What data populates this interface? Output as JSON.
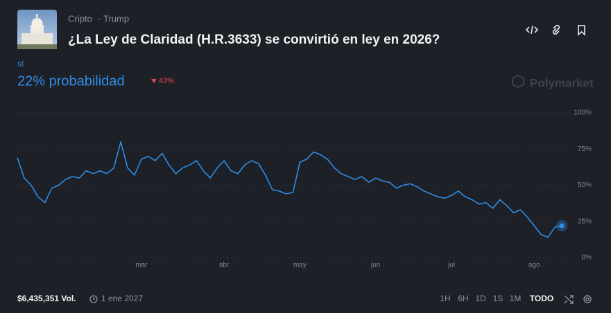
{
  "header": {
    "tags": [
      "Cripto",
      "Trump"
    ],
    "title": "¿La Ley de Claridad (H.R.3633) se convirtió en ley en 2026?"
  },
  "outcome": {
    "name": "sí",
    "probability": "22% probabilidad",
    "change": "43%"
  },
  "brand": "Polymarket",
  "footer": {
    "volume": "$6,435,351 Vol.",
    "end_date": "1 ene 2027",
    "ranges": [
      "1H",
      "6H",
      "1D",
      "1S",
      "1M",
      "TODO"
    ]
  },
  "chart_data": {
    "type": "line",
    "categories": [
      null,
      null,
      null,
      null,
      null,
      null,
      null,
      null,
      null,
      null,
      null,
      null,
      null,
      null,
      null,
      null,
      null,
      null,
      "mar",
      null,
      null,
      null,
      null,
      null,
      null,
      null,
      null,
      null,
      null,
      null,
      "abr",
      null,
      null,
      null,
      null,
      null,
      null,
      null,
      null,
      null,
      null,
      "may",
      null,
      null,
      null,
      null,
      null,
      null,
      null,
      null,
      null,
      null,
      "jun",
      null,
      null,
      null,
      null,
      null,
      null,
      null,
      null,
      null,
      null,
      "jul",
      null,
      null,
      null,
      null,
      null,
      null,
      null,
      null,
      null,
      null,
      null,
      "ago",
      null,
      null,
      null,
      null
    ],
    "series": [
      {
        "name": "sí",
        "color": "#2e8ce6",
        "values": [
          69,
          55,
          50,
          42,
          38,
          48,
          50,
          54,
          56,
          55,
          60,
          58,
          60,
          58,
          62,
          80,
          62,
          57,
          68,
          70,
          67,
          72,
          64,
          58,
          62,
          64,
          67,
          60,
          55,
          62,
          67,
          60,
          58,
          64,
          67,
          65,
          57,
          47,
          46,
          44,
          45,
          66,
          68,
          73,
          71,
          68,
          62,
          58,
          56,
          54,
          56,
          52,
          55,
          53,
          52,
          48,
          50,
          51,
          49,
          46,
          44,
          42,
          41,
          43,
          46,
          42,
          40,
          37,
          38,
          34,
          40,
          36,
          31,
          33,
          28,
          22,
          16,
          14,
          21,
          22
        ]
      }
    ],
    "ylim": [
      0,
      100
    ],
    "yticks": [
      {
        "value": 0,
        "label": "0%"
      },
      {
        "value": 25,
        "label": "25%"
      },
      {
        "value": 50,
        "label": "50%"
      },
      {
        "value": 75,
        "label": "75%"
      },
      {
        "value": 100,
        "label": "100%"
      }
    ],
    "grid": true
  }
}
